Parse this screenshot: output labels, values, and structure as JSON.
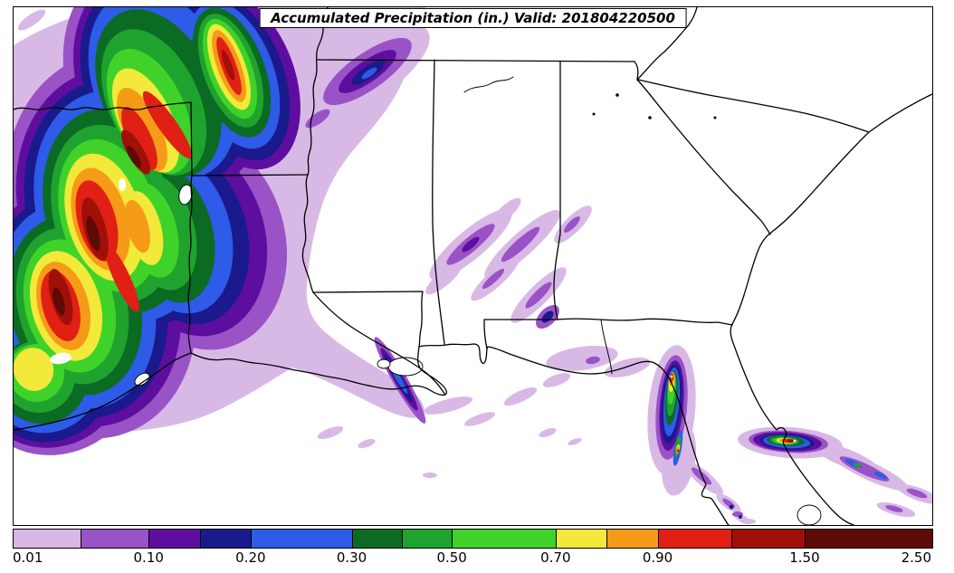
{
  "title": {
    "text": "Accumulated Precipitation (in.) Valid: 201804220500"
  },
  "chart_data": {
    "type": "heatmap",
    "title": "Accumulated Precipitation (in.) Valid: 201804220500",
    "valid_time": "201804220500",
    "units": "in.",
    "region_shown": "Southeastern United States: eastern Texas, Louisiana, Arkansas, Mississippi, Alabama, Georgia, Florida, South Carolina, southern North Carolina and Tennessee, Gulf of Mexico coast",
    "colorbar": {
      "ticks": [
        {
          "label": "0.01",
          "value": 0.01,
          "percent": 0
        },
        {
          "label": "0.10",
          "value": 0.1,
          "percent": 14.8
        },
        {
          "label": "0.20",
          "value": 0.2,
          "percent": 25.9
        },
        {
          "label": "0.30",
          "value": 0.3,
          "percent": 36.9
        },
        {
          "label": "0.50",
          "value": 0.5,
          "percent": 47.8
        },
        {
          "label": "0.70",
          "value": 0.7,
          "percent": 59.1
        },
        {
          "label": "0.90",
          "value": 0.9,
          "percent": 70.2
        },
        {
          "label": "1.50",
          "value": 1.5,
          "percent": 86.2
        },
        {
          "label": "2.50",
          "value": 2.5,
          "percent": 100
        }
      ],
      "segments": [
        {
          "from": 0.01,
          "to": 0.05,
          "color": "#D8B9E6",
          "start": 0,
          "end": 7.4
        },
        {
          "from": 0.05,
          "to": 0.1,
          "color": "#9A52C7",
          "start": 7.4,
          "end": 14.8
        },
        {
          "from": 0.1,
          "to": 0.15,
          "color": "#5D0E9E",
          "start": 14.8,
          "end": 20.35
        },
        {
          "from": 0.15,
          "to": 0.2,
          "color": "#1A1A8C",
          "start": 20.35,
          "end": 25.9
        },
        {
          "from": 0.2,
          "to": 0.3,
          "color": "#2E5BE8",
          "start": 25.9,
          "end": 36.9
        },
        {
          "from": 0.3,
          "to": 0.4,
          "color": "#0B6B23",
          "start": 36.9,
          "end": 42.35
        },
        {
          "from": 0.4,
          "to": 0.5,
          "color": "#1FA32E",
          "start": 42.35,
          "end": 47.8
        },
        {
          "from": 0.5,
          "to": 0.7,
          "color": "#3FD32A",
          "start": 47.8,
          "end": 59.1
        },
        {
          "from": 0.7,
          "to": 0.8,
          "color": "#F2E93B",
          "start": 59.1,
          "end": 64.65
        },
        {
          "from": 0.8,
          "to": 0.9,
          "color": "#F59B18",
          "start": 64.65,
          "end": 70.2
        },
        {
          "from": 0.9,
          "to": 1.2,
          "color": "#E02014",
          "start": 70.2,
          "end": 78.2
        },
        {
          "from": 1.2,
          "to": 1.5,
          "color": "#A01008",
          "start": 78.2,
          "end": 86.2
        },
        {
          "from": 1.5,
          "to": 2.5,
          "color": "#5E0A06",
          "start": 86.2,
          "end": 100
        }
      ]
    },
    "features": [
      "Widespread heavy accumulated precipitation (1.5 to >2.5 in., red/dark-red cores with white >2.5 spots) over eastern Texas and northwest Louisiana in NE-SW oriented bands",
      "Surrounding moderate bands (0.1-0.9 in., purple/blue/green) extending northeast toward Arkansas and the map top edge",
      "Thin light streaks (0.01-0.2 in., lavender/purple) across central Mississippi and Alabama",
      "Light streaks crossing the Louisiana coast with narrow blue/green cores",
      "Intense isolated convective cells (up to >2.5 in.) over the central Florida peninsula with trailing streaks toward the southeast",
      "Scattered light amounts along the Florida panhandle coast; Georgia and the Carolinas mostly dry"
    ]
  }
}
